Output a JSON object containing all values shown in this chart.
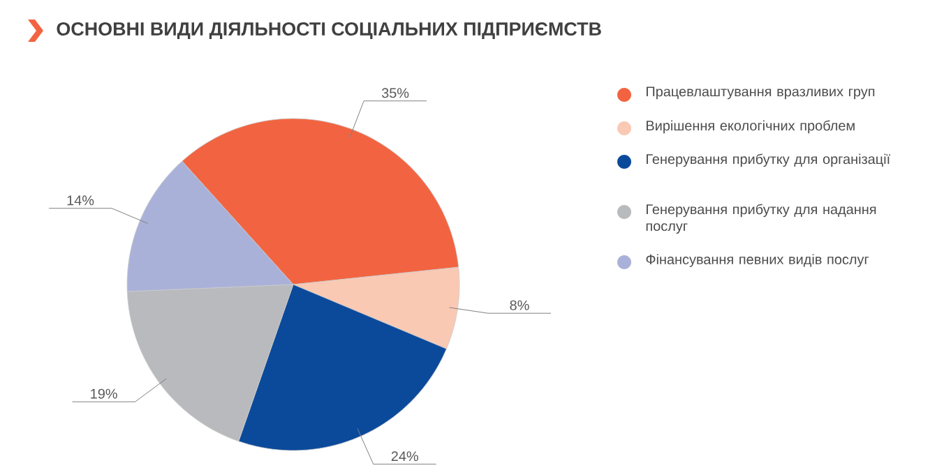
{
  "chart_data": {
    "type": "pie",
    "title": "ОСНОВНІ ВИДИ ДІЯЛЬНОСТІ СОЦІАЛЬНИХ ПІДПРИЄМСТВ",
    "categories": [
      "Працевлаштування вразливих груп",
      "Вирішення екологічних проблем",
      "Генерування прибутку для організації",
      "Генерування прибутку для надання послуг",
      "Фінансування певних видів послуг"
    ],
    "values": [
      35,
      8,
      24,
      19,
      14
    ],
    "value_labels": [
      "35%",
      "8%",
      "24%",
      "19%",
      "14%"
    ],
    "colors": [
      "#f26441",
      "#f9c9b4",
      "#0b4a9b",
      "#b9babd",
      "#aab1d9"
    ],
    "legend": "right"
  }
}
